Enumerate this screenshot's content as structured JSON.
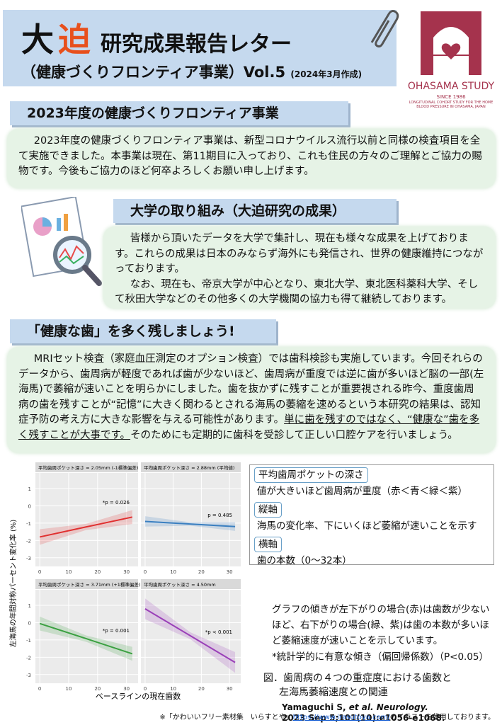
{
  "header": {
    "title_big": "大",
    "title_accent": "迫",
    "title_rest": "研究成果報告レター",
    "subtitle": "（健康づくりフロンティア事業）Vol.5",
    "date": "(2024年3月作成)",
    "logo_name": "OHASAMA STUDY",
    "logo_since": "SINCE 1986",
    "logo_caption": "LONGITUDINAL COHORT STUDY FOR THE HOME BLOOD PRESSURE IN OHASAMA, JAPAN"
  },
  "sections": [
    {
      "heading": "2023年度の健康づくりフロンティア事業",
      "paragraphs": [
        "2023年度の健康づくりフロンティア事業は、新型コロナウイルス流行以前と同様の検査項目を全て実施できました。本事業は現在、第11期目に入っており、これも住民の方々のご理解とご協力の賜物です。今後もご協力のほど何卒よろしくお願い申し上げます。"
      ]
    },
    {
      "heading": "大学の取り組み（大迫研究の成果）",
      "paragraphs": [
        "皆様から頂いたデータを大学で集計し、現在も様々な成果を上げております。これらの成果は日本のみならず海外にも発信され、世界の健康維持につながっております。",
        "なお、現在も、帝京大学が中心となり、東北大学、東北医科薬科大学、そして秋田大学などのその他多くの大学機関の協力も得て継続しております。"
      ]
    },
    {
      "heading": "「健康な歯」を多く残しましょう!",
      "paragraphs": [
        "MRIセット検査（家庭血圧測定のオプション検査）では歯科検診も実施しています。今回それらのデータから、歯周病が軽度であれば歯が少ないほど、歯周病が重度では逆に歯が多いほど脳の一部(左海馬)で萎縮が速いことを明らかにしました。歯を抜かずに残すことが重要視される昨今、重度歯周病の歯を残すことが“記憶”に大きく関わるとされる海馬の萎縮を速めるという本研究の結果は、認知症予防の考え方に大きな影響を与える可能性があります。",
        "単に歯を残すのではなく、“健康な”歯を多く残すことが大事です。",
        "そのためにも定期的に歯科を受診して正しい口腔ケアを行いましょう。"
      ]
    }
  ],
  "chart": {
    "type": "line",
    "y_label": "左海馬の年間対称パーセント変化率 (%)",
    "x_label": "ベースラインの現在歯数",
    "xlim": [
      -1.5,
      34
    ],
    "ylim": [
      -3.5,
      1.9
    ],
    "xticks": [
      0,
      10,
      20,
      30
    ],
    "yticks": [
      1,
      0,
      -1,
      -2,
      -3
    ],
    "grid": true,
    "panels": [
      {
        "title": "平均歯周ポケット深さ = 2.05mm (-1標準偏差)",
        "annotation": "*p = 0.026",
        "color": "#e03030",
        "x": [
          0,
          16,
          32
        ],
        "values": [
          -1.8,
          -1.22,
          -0.65
        ],
        "lower": [
          -2.25,
          -1.4,
          -1.05
        ],
        "upper": [
          -1.35,
          -1.04,
          -0.25
        ]
      },
      {
        "title": "平均歯周ポケット深さ = 2.88mm (平均値)",
        "annotation": "p = 0.485",
        "color": "#3a7fc0",
        "x": [
          0,
          16,
          32
        ],
        "values": [
          -0.9,
          -1.05,
          -1.2
        ],
        "lower": [
          -1.2,
          -1.15,
          -1.45
        ],
        "upper": [
          -0.6,
          -0.95,
          -0.95
        ]
      },
      {
        "title": "平均歯周ポケット深さ = 3.71mm (+1標準偏差)",
        "annotation": "*p = 0.001",
        "color": "#3aa040",
        "x": [
          0,
          16,
          32
        ],
        "values": [
          -0.05,
          -0.92,
          -1.8
        ],
        "lower": [
          -0.45,
          -1.1,
          -2.2
        ],
        "upper": [
          0.35,
          -0.74,
          -1.4
        ]
      },
      {
        "title": "平均歯周ポケット深さ = 4.50mm",
        "annotation": "*p < 0.001",
        "color": "#9a40b8",
        "x": [
          0,
          16,
          32
        ],
        "values": [
          0.8,
          -0.75,
          -2.3
        ],
        "lower": [
          0.2,
          -0.95,
          -2.9
        ],
        "upper": [
          1.4,
          -0.55,
          -1.7
        ]
      }
    ]
  },
  "info": {
    "items": [
      {
        "label": "平均歯周ポケットの深さ",
        "text": "値が大きいほど歯周病が重度（赤＜青＜緑＜紫）"
      },
      {
        "label": "縦軸",
        "text": "海馬の変化率、下にいくほど萎縮が速いことを示す"
      },
      {
        "label": "横軸",
        "text": "歯の本数（0〜32本）"
      }
    ],
    "note": "グラフの傾きが左下がりの場合(赤)は歯数が少ないほど、右下がりの場合(緑、紫)は歯の本数が多いほど萎縮速度が速いことを示しています。",
    "significance": "*統計学的に有意な傾き（偏回帰係数）（P<0.05）",
    "figure_caption": [
      "図．歯周病の４つの重症度における歯数と",
      "左海馬萎縮速度との関連"
    ],
    "citation_authors": "Yamaguchi S, ",
    "citation_journal": "et al. Neurology.",
    "citation_detail": "2023 Sep 5;101(10):e1056-e1068."
  },
  "footer": {
    "prefix": "※「かわいいフリー素材集　いらすとや」",
    "link": "https://www.irasutoya.com/",
    "suffix": "のイラストを使用しております。"
  }
}
